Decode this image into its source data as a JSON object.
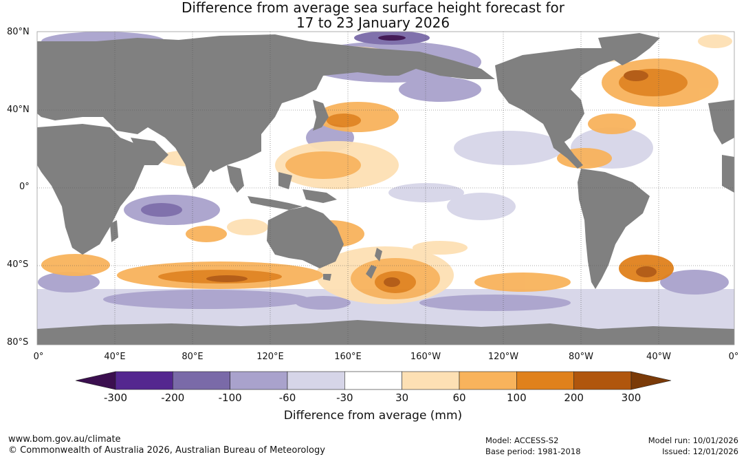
{
  "title": {
    "line1": "Difference from average sea surface height forecast for",
    "line2": "17 to 23 January 2026"
  },
  "latitude_labels": [
    "80°N",
    "40°N",
    "0°",
    "40°S",
    "80°S"
  ],
  "longitude_labels": [
    "0°",
    "40°E",
    "80°E",
    "120°E",
    "160°E",
    "160°W",
    "120°W",
    "80°W",
    "40°W",
    "0°"
  ],
  "colorbar": {
    "ticks": [
      "-300",
      "-200",
      "-100",
      "-60",
      "-30",
      "30",
      "60",
      "100",
      "200",
      "300"
    ],
    "colors": [
      "#3b0f4f",
      "#54278f",
      "#7a6aa8",
      "#a9a2cc",
      "#d6d5e8",
      "#ffffff",
      "#fde0b4",
      "#f8b35c",
      "#e0811c",
      "#b0560d",
      "#7a3a08"
    ],
    "title": "Difference from average (mm)"
  },
  "land_color": "#808080",
  "footer": {
    "website": "www.bom.gov.au/climate",
    "copyright": "© Commonwealth of Australia 2026, Australian Bureau of Meteorology",
    "model": "Model: ACCESS-S2",
    "base_period": "Base period: 1981-2018",
    "model_run": "Model run: 10/01/2026",
    "issued": "Issued: 12/01/2026"
  }
}
